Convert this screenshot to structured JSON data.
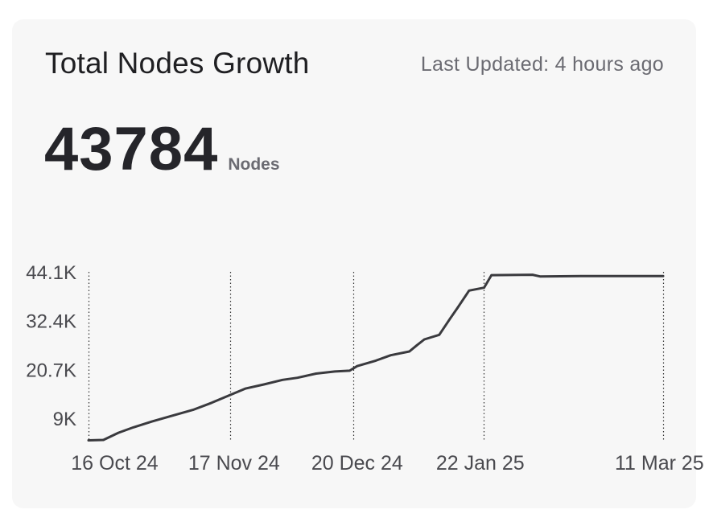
{
  "card": {
    "title": "Total Nodes Growth",
    "updated": "Last Updated: 4 hours ago",
    "metric_value": "43784",
    "metric_unit": "Nodes"
  },
  "colors": {
    "card_bg": "#f7f7f7",
    "line": "#3a3a3e",
    "grid": "#333333",
    "title": "#1f1f22",
    "muted": "#6b6b72"
  },
  "chart_data": {
    "type": "line",
    "title": "Total Nodes Growth",
    "grid": "vertical dotted",
    "y_ticks": [
      9000,
      20700,
      32400,
      44100
    ],
    "y_tick_labels": [
      "9K",
      "20.7K",
      "32.4K",
      "44.1K"
    ],
    "ylim": [
      3600,
      44100
    ],
    "x_ticks": [
      "2024-10-16",
      "2024-11-17",
      "2024-12-20",
      "2025-01-22",
      "2025-03-11"
    ],
    "x_tick_labels": [
      "16 Oct 24",
      "17 Nov 24",
      "20 Dec 24",
      "22 Jan 25",
      "11 Mar 25"
    ],
    "x_gridlines": [
      "2024-10-09",
      "2024-11-16",
      "2024-12-19",
      "2025-01-23",
      "2025-03-12"
    ],
    "xlim": [
      "2024-10-09",
      "2025-03-12"
    ],
    "series": [
      {
        "x": [
          "2024-10-09",
          "2024-10-13",
          "2024-10-17",
          "2024-10-21",
          "2024-10-26",
          "2024-10-31",
          "2024-11-06",
          "2024-11-11",
          "2024-11-16",
          "2024-11-20",
          "2024-11-25",
          "2024-11-30",
          "2024-12-04",
          "2024-12-09",
          "2024-12-14",
          "2024-12-18",
          "2024-12-20",
          "2024-12-25",
          "2024-12-29",
          "2025-01-03",
          "2025-01-05",
          "2025-01-07",
          "2025-01-11",
          "2025-01-14",
          "2025-01-16",
          "2025-01-19",
          "2025-01-23",
          "2025-01-25",
          "2025-02-05",
          "2025-02-07",
          "2025-02-18",
          "2025-02-28",
          "2025-03-12"
        ],
        "values": [
          3700,
          3800,
          5500,
          6800,
          8200,
          9500,
          11000,
          12700,
          14600,
          16100,
          17100,
          18200,
          18700,
          19700,
          20200,
          20400,
          21500,
          22800,
          24100,
          25000,
          26500,
          27900,
          29000,
          33000,
          35600,
          39600,
          40300,
          43300,
          43400,
          43000,
          43100,
          43100,
          43100
        ]
      }
    ]
  }
}
